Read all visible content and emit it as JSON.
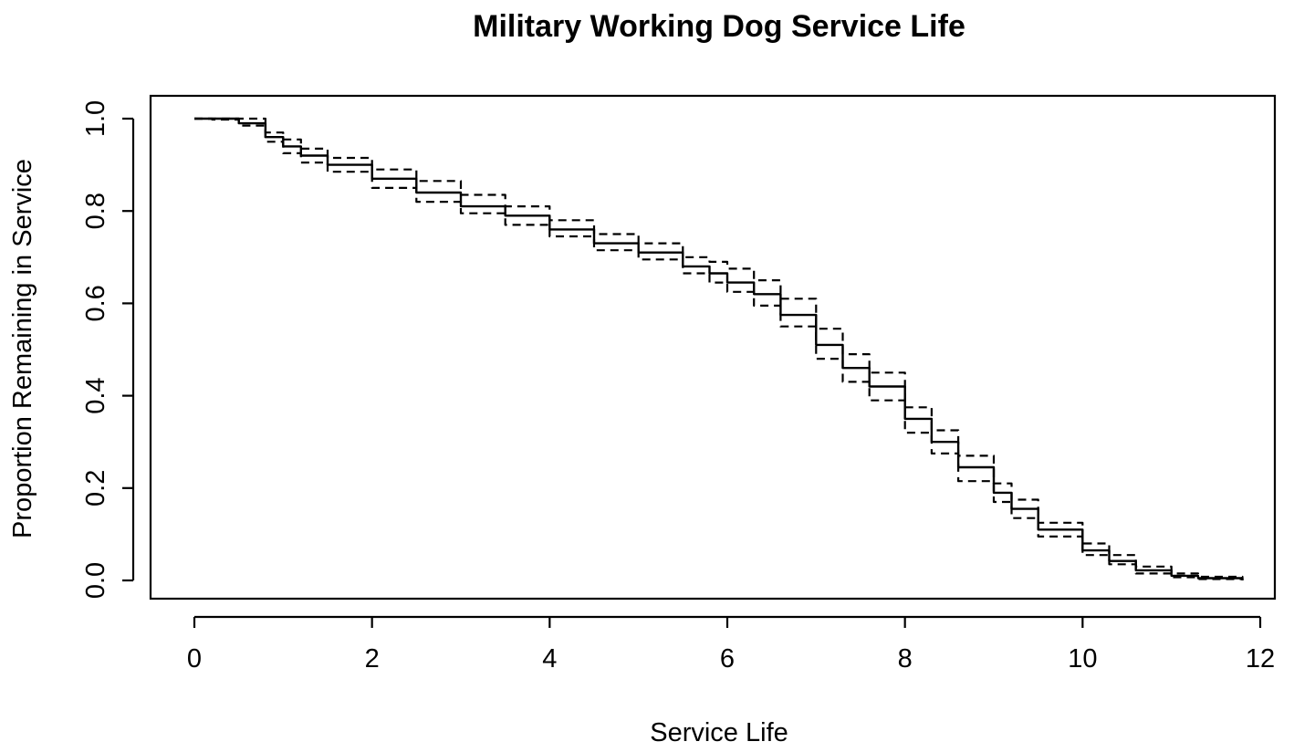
{
  "chart_data": {
    "type": "line",
    "title": "Military Working Dog Service Life",
    "xlabel": "Service Life",
    "ylabel": "Proportion Remaining in Service",
    "xlim": [
      0,
      12
    ],
    "ylim": [
      0,
      1
    ],
    "x_ticks": [
      0,
      2,
      4,
      6,
      8,
      10,
      12
    ],
    "x_tick_labels": [
      "0",
      "2",
      "4",
      "6",
      "8",
      "10",
      "12"
    ],
    "y_ticks": [
      0,
      0.2,
      0.4,
      0.6,
      0.8,
      1.0
    ],
    "y_tick_labels": [
      "0.0",
      "0.2",
      "0.4",
      "0.6",
      "0.8",
      "1.0"
    ],
    "grid": false,
    "legend": "none",
    "x": [
      0,
      0.2,
      0.5,
      0.8,
      1.0,
      1.2,
      1.5,
      2.0,
      2.5,
      3.0,
      3.5,
      4.0,
      4.5,
      5.0,
      5.5,
      5.8,
      6.0,
      6.3,
      6.6,
      7.0,
      7.3,
      7.6,
      8.0,
      8.3,
      8.6,
      9.0,
      9.2,
      9.5,
      10.0,
      10.3,
      10.6,
      11.0,
      11.3,
      11.8
    ],
    "series": [
      {
        "style": "solid",
        "values": [
          1.0,
          1.0,
          0.99,
          0.96,
          0.94,
          0.92,
          0.9,
          0.87,
          0.84,
          0.81,
          0.79,
          0.76,
          0.73,
          0.71,
          0.68,
          0.665,
          0.645,
          0.62,
          0.575,
          0.51,
          0.46,
          0.42,
          0.35,
          0.3,
          0.245,
          0.19,
          0.155,
          0.11,
          0.065,
          0.042,
          0.022,
          0.01,
          0.005,
          0.0
        ]
      },
      {
        "style": "dashed",
        "values": [
          1.0,
          1.0,
          1.0,
          0.97,
          0.955,
          0.935,
          0.915,
          0.89,
          0.865,
          0.835,
          0.81,
          0.78,
          0.75,
          0.73,
          0.7,
          0.69,
          0.675,
          0.65,
          0.61,
          0.545,
          0.49,
          0.45,
          0.375,
          0.325,
          0.27,
          0.21,
          0.175,
          0.125,
          0.08,
          0.055,
          0.03,
          0.015,
          0.008,
          0.003
        ]
      },
      {
        "style": "dashed",
        "values": [
          1.0,
          0.998,
          0.985,
          0.95,
          0.925,
          0.905,
          0.885,
          0.85,
          0.82,
          0.795,
          0.77,
          0.745,
          0.715,
          0.695,
          0.665,
          0.645,
          0.625,
          0.595,
          0.55,
          0.48,
          0.43,
          0.39,
          0.32,
          0.275,
          0.215,
          0.17,
          0.135,
          0.095,
          0.055,
          0.035,
          0.015,
          0.007,
          0.003,
          0.0
        ]
      }
    ]
  }
}
